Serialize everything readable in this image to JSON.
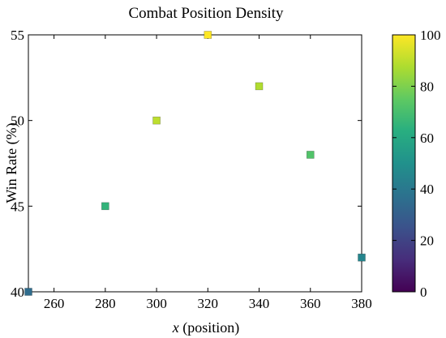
{
  "chart_data": {
    "type": "scatter",
    "title": "Combat Position Density",
    "xlabel_italic": "x",
    "xlabel_rest": " (position)",
    "ylabel": "Win Rate (%)",
    "xlim": [
      250,
      380
    ],
    "ylim": [
      40,
      55
    ],
    "x_ticks": [
      "260",
      "280",
      "300",
      "320",
      "340",
      "360",
      "380"
    ],
    "y_ticks": [
      "40",
      "45",
      "50",
      "55"
    ],
    "grid": false,
    "marker": "square",
    "colormap": "viridis",
    "colorbar": {
      "range": [
        0,
        100
      ],
      "ticks": [
        "0",
        "20",
        "40",
        "60",
        "80",
        "100"
      ]
    },
    "points": [
      {
        "x": 250,
        "y": 40,
        "value": 35
      },
      {
        "x": 280,
        "y": 45,
        "value": 65
      },
      {
        "x": 300,
        "y": 50,
        "value": 90
      },
      {
        "x": 320,
        "y": 55,
        "value": 100
      },
      {
        "x": 340,
        "y": 52,
        "value": 88
      },
      {
        "x": 360,
        "y": 48,
        "value": 72
      },
      {
        "x": 380,
        "y": 42,
        "value": 45
      }
    ]
  }
}
